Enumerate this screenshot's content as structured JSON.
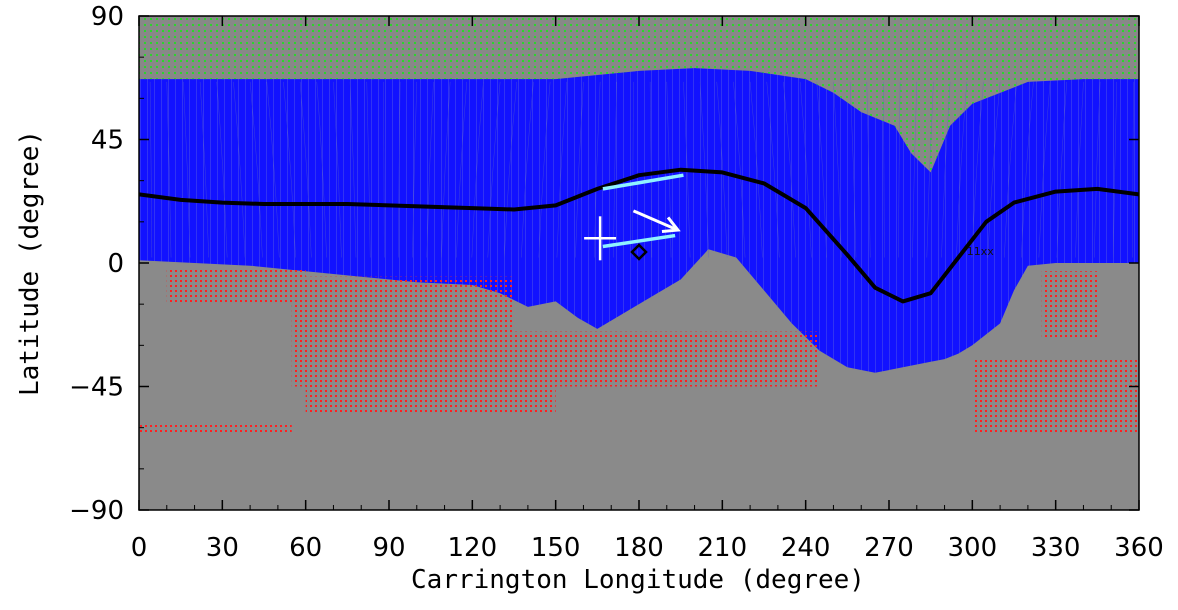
{
  "chart_data": {
    "type": "scatter",
    "title": "",
    "xlabel": "Carrington Longitude (degree)",
    "ylabel": "Latitude (degree)",
    "xlim": [
      0,
      360
    ],
    "ylim": [
      -90,
      90
    ],
    "xticks": [
      0,
      30,
      60,
      90,
      120,
      150,
      180,
      210,
      240,
      270,
      300,
      330,
      360
    ],
    "yticks": [
      90,
      45,
      0,
      -45,
      -90
    ],
    "grid": false,
    "colors": {
      "open_field_north": "#1010ff",
      "polar_coronal_hole": "#22dd22",
      "open_field_south": "#ff2020",
      "neutral_line": "#000000",
      "ribbon": "#8ff2ff",
      "marker": "#ffffff",
      "background": "#8a8a8a"
    },
    "annotations": {
      "region_label": "11xx"
    },
    "series": [
      {
        "role": "heliospheric-current-sheet",
        "x": [
          0,
          15,
          30,
          45,
          60,
          75,
          90,
          105,
          120,
          135,
          150,
          165,
          180,
          195,
          210,
          225,
          240,
          255,
          265,
          275,
          285,
          295,
          305,
          315,
          330,
          345,
          360
        ],
        "y": [
          25,
          23,
          22,
          21.5,
          21.5,
          21.5,
          21,
          20.5,
          20,
          19.5,
          21,
          27,
          32,
          34,
          33,
          29,
          20,
          3,
          -9,
          -14,
          -11,
          2,
          15,
          22,
          26,
          27,
          25
        ]
      },
      {
        "role": "ribbon-upper",
        "x": [
          167,
          196
        ],
        "y": [
          27,
          32
        ]
      },
      {
        "role": "ribbon-lower",
        "x": [
          167,
          193
        ],
        "y": [
          6,
          10
        ]
      },
      {
        "role": "motion-arrow",
        "x": [
          178,
          194
        ],
        "y": [
          19,
          12
        ]
      },
      {
        "role": "plus-marker",
        "x": [
          166
        ],
        "y": [
          9
        ]
      },
      {
        "role": "diamond-marker",
        "x": [
          180
        ],
        "y": [
          4
        ]
      }
    ],
    "open_field_north_boundary": {
      "x": [
        0,
        20,
        40,
        60,
        80,
        100,
        120,
        130,
        140,
        150,
        158,
        165,
        175,
        185,
        195,
        205,
        215,
        225,
        235,
        245,
        255,
        265,
        275,
        285,
        290,
        295,
        300,
        310,
        315,
        320,
        330,
        345,
        360
      ],
      "y": [
        1,
        0,
        -1,
        -3,
        -5,
        -7,
        -8,
        -11,
        -16,
        -14,
        -20,
        -24,
        -18,
        -12,
        -6,
        5,
        2,
        -10,
        -22,
        -32,
        -38,
        -40,
        -38,
        -36,
        -35,
        -33,
        -30,
        -22,
        -10,
        -1,
        0,
        0,
        0
      ]
    },
    "polar_boundary_north": {
      "x": [
        0,
        150,
        160,
        180,
        200,
        220,
        240,
        250,
        260,
        272,
        278,
        285,
        292,
        300,
        320,
        340,
        360
      ],
      "y": [
        67,
        67,
        68,
        70,
        71,
        70,
        67,
        62,
        55,
        50,
        40,
        33,
        50,
        58,
        66,
        67,
        67
      ]
    },
    "open_field_south_patches": [
      {
        "x": [
          10,
          60
        ],
        "y": [
          -2,
          -15
        ]
      },
      {
        "x": [
          55,
          135
        ],
        "y": [
          -5,
          -45
        ]
      },
      {
        "x": [
          60,
          150
        ],
        "y": [
          -45,
          -55
        ]
      },
      {
        "x": [
          120,
          245
        ],
        "y": [
          -25,
          -45
        ]
      },
      {
        "x": [
          0,
          55
        ],
        "y": [
          -58,
          -62
        ]
      },
      {
        "x": [
          300,
          365
        ],
        "y": [
          -35,
          -62
        ]
      },
      {
        "x": [
          325,
          345
        ],
        "y": [
          -3,
          -28
        ]
      }
    ]
  }
}
